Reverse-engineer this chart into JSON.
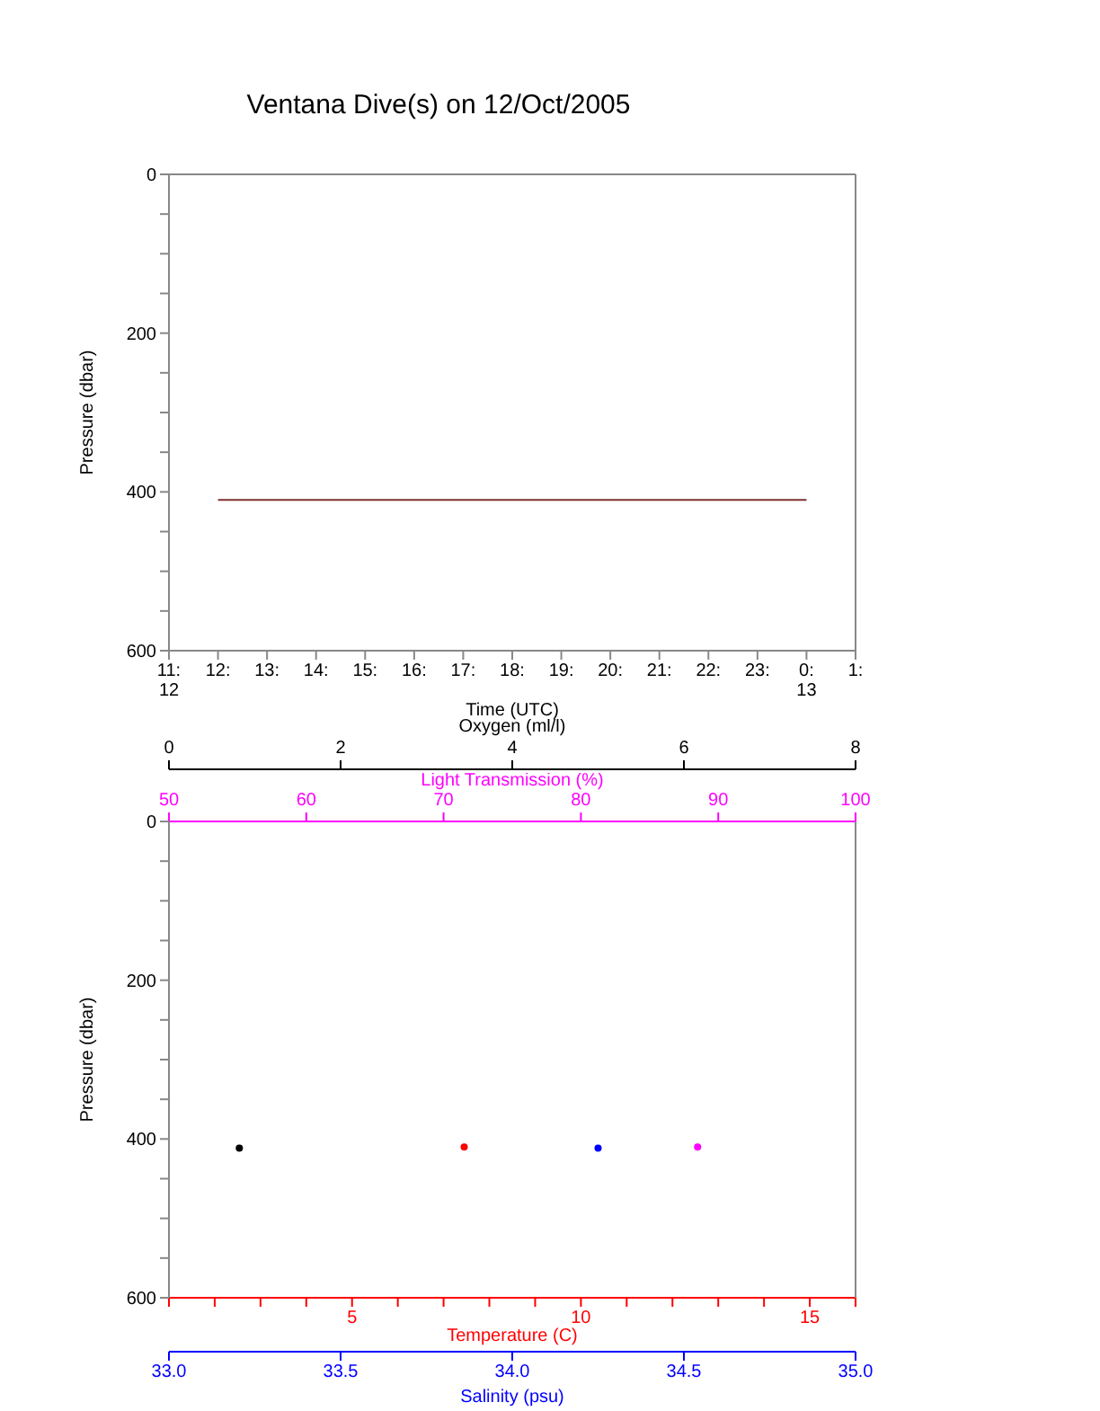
{
  "chart_data": [
    {
      "type": "line",
      "title": "Ventana Dive(s) on 12/Oct/2005",
      "xlabel": "Time (UTC)",
      "ylabel": "Pressure (dbar)",
      "xlim": [
        "2005-10-12T11:00",
        "2005-10-13T01:00"
      ],
      "xticks": [
        {
          "value": "2005-10-12T11:00",
          "label": "11:\n12"
        },
        {
          "value": "2005-10-12T12:00",
          "label": "12:"
        },
        {
          "value": "2005-10-12T13:00",
          "label": "13:"
        },
        {
          "value": "2005-10-12T14:00",
          "label": "14:"
        },
        {
          "value": "2005-10-12T15:00",
          "label": "15:"
        },
        {
          "value": "2005-10-12T16:00",
          "label": "16:"
        },
        {
          "value": "2005-10-12T17:00",
          "label": "17:"
        },
        {
          "value": "2005-10-12T18:00",
          "label": "18:"
        },
        {
          "value": "2005-10-12T19:00",
          "label": "19:"
        },
        {
          "value": "2005-10-12T20:00",
          "label": "20:"
        },
        {
          "value": "2005-10-12T21:00",
          "label": "21:"
        },
        {
          "value": "2005-10-12T22:00",
          "label": "22:"
        },
        {
          "value": "2005-10-12T23:00",
          "label": "23:"
        },
        {
          "value": "2005-10-13T00:00",
          "label": "0:\n13"
        },
        {
          "value": "2005-10-13T01:00",
          "label": "1:"
        }
      ],
      "ylim": [
        600,
        0
      ],
      "yticks": [
        0,
        {
          "value": 50,
          "label": null
        },
        {
          "value": 100,
          "label": null
        },
        {
          "value": 150,
          "label": null
        },
        200,
        {
          "value": 250,
          "label": null
        },
        {
          "value": 300,
          "label": null
        },
        {
          "value": 350,
          "label": null
        },
        400,
        {
          "value": 450,
          "label": null
        },
        {
          "value": 500,
          "label": null
        },
        {
          "value": 550,
          "label": null
        },
        600
      ],
      "series": [
        {
          "color": "#803030",
          "x": [
            "2005-10-12T12:00",
            "2005-10-13T00:00"
          ],
          "values": [
            410,
            410
          ]
        }
      ]
    },
    {
      "type": "scatter",
      "ylabel": "Pressure (dbar)",
      "xlabel": "Temperature (C)",
      "xlim": [
        1,
        16
      ],
      "xticks": [
        {
          "value": 1,
          "label": null
        },
        {
          "value": 2,
          "label": null
        },
        {
          "value": 3,
          "label": null
        },
        {
          "value": 4,
          "label": null
        },
        5,
        {
          "value": 6,
          "label": null
        },
        {
          "value": 7,
          "label": null
        },
        {
          "value": 8,
          "label": null
        },
        {
          "value": 9,
          "label": null
        },
        10,
        {
          "value": 11,
          "label": null
        },
        {
          "value": 12,
          "label": null
        },
        {
          "value": 13,
          "label": null
        },
        {
          "value": 14,
          "label": null
        },
        15,
        {
          "value": 16,
          "label": null
        }
      ],
      "x2label": "Light Transmission (%)",
      "x2lim": [
        50,
        100
      ],
      "x2ticks": [
        50,
        60,
        70,
        80,
        90,
        100
      ],
      "ylim": [
        600,
        0
      ],
      "yticks": [
        0,
        {
          "value": 50,
          "label": null
        },
        {
          "value": 100,
          "label": null
        },
        {
          "value": 150,
          "label": null
        },
        200,
        {
          "value": 250,
          "label": null
        },
        {
          "value": 300,
          "label": null
        },
        {
          "value": 350,
          "label": null
        },
        400,
        {
          "value": 450,
          "label": null
        },
        {
          "value": 500,
          "label": null
        },
        {
          "value": 550,
          "label": null
        },
        600
      ],
      "series": [
        {
          "color": "#ff0000",
          "x": [
            7.45
          ],
          "values": [
            410
          ]
        },
        {
          "axis": "x2",
          "color": "#ff00ff",
          "x": [
            88.5
          ],
          "values": [
            410
          ]
        }
      ]
    },
    {
      "type": "scatter",
      "tick_labels": "x",
      "xlabel": "Salinity (psu)",
      "xlim": [
        33,
        35
      ],
      "xticks": [
        {
          "value": 33,
          "label": "33.0"
        },
        {
          "value": 33.5,
          "label": "33.5"
        },
        {
          "value": 34,
          "label": "34.0"
        },
        {
          "value": 34.5,
          "label": "34.5"
        },
        {
          "value": 35,
          "label": "35.0"
        }
      ],
      "x2label": "Oxygen (ml/l)",
      "x2lim": [
        0,
        8
      ],
      "x2ticks": [
        0,
        2,
        4,
        6,
        8
      ],
      "ylim": [
        600,
        0
      ],
      "series": [
        {
          "color": "#0000ff",
          "x": [
            34.25
          ],
          "values": [
            410
          ]
        },
        {
          "axis": "x2",
          "color": "#000000",
          "x": [
            0.82
          ],
          "values": [
            410
          ]
        }
      ]
    }
  ]
}
